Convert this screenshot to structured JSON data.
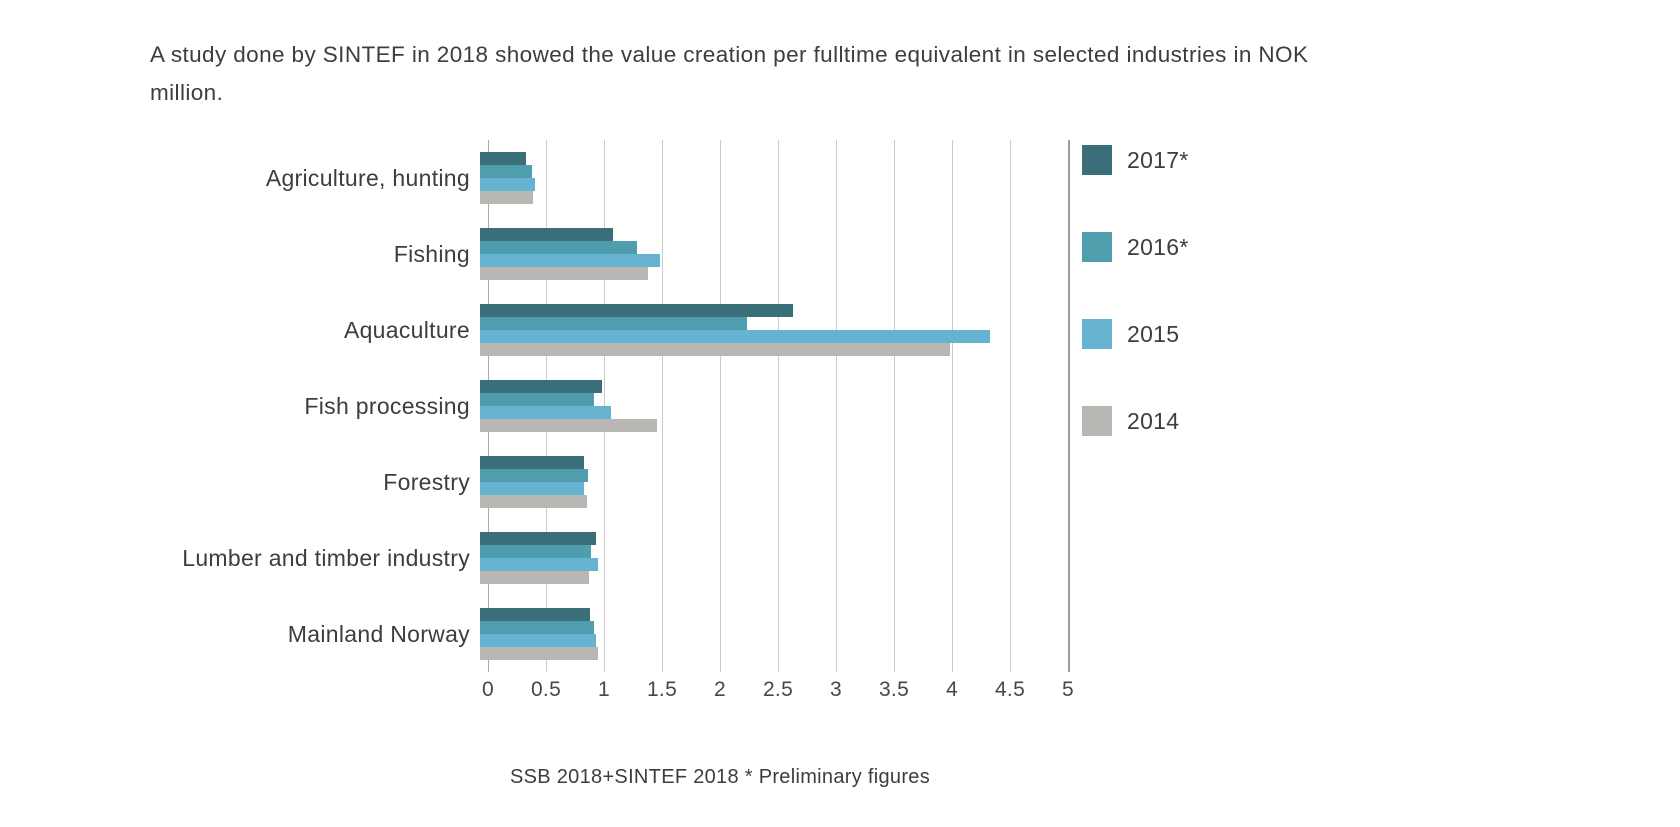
{
  "description": "A study done by SINTEF in 2018 showed the value creation per fulltime equivalent in selected industries in NOK million.",
  "source": "SSB 2018+SINTEF 2018 * Preliminary figures",
  "chart_data": {
    "type": "bar",
    "orientation": "horizontal",
    "title": "Value creation per fulltime equivalent in selected industries (NOK million)",
    "categories": [
      "Agriculture, hunting",
      "Fishing",
      "Aquaculture",
      "Fish processing",
      "Forestry",
      "Lumber and timber industry",
      "Mainland Norway"
    ],
    "series": [
      {
        "name": "2017*",
        "color": "#3a6f7a",
        "values": [
          0.4,
          1.15,
          2.7,
          1.05,
          0.9,
          1.0,
          0.95
        ]
      },
      {
        "name": "2016*",
        "color": "#4f9dad",
        "values": [
          0.45,
          1.35,
          2.3,
          0.98,
          0.93,
          0.96,
          0.98
        ]
      },
      {
        "name": "2015",
        "color": "#66b2d1",
        "values": [
          0.47,
          1.55,
          4.4,
          1.13,
          0.9,
          1.02,
          1.0
        ]
      },
      {
        "name": "2014",
        "color": "#b8b7b4",
        "values": [
          0.46,
          1.45,
          4.05,
          1.53,
          0.92,
          0.94,
          1.02
        ]
      }
    ],
    "xlabel": "",
    "ylabel": "",
    "xlim": [
      0,
      5
    ],
    "xticks": [
      "0",
      "0.5",
      "1",
      "1.5",
      "2",
      "2.5",
      "3",
      "3.5",
      "4",
      "4.5",
      "5"
    ],
    "grid": true,
    "legend_position": "right",
    "colors": {
      "gridline": "#cbcbcb",
      "axis_end_line": "#9d9d9d",
      "text": "#3d3d3d"
    }
  }
}
